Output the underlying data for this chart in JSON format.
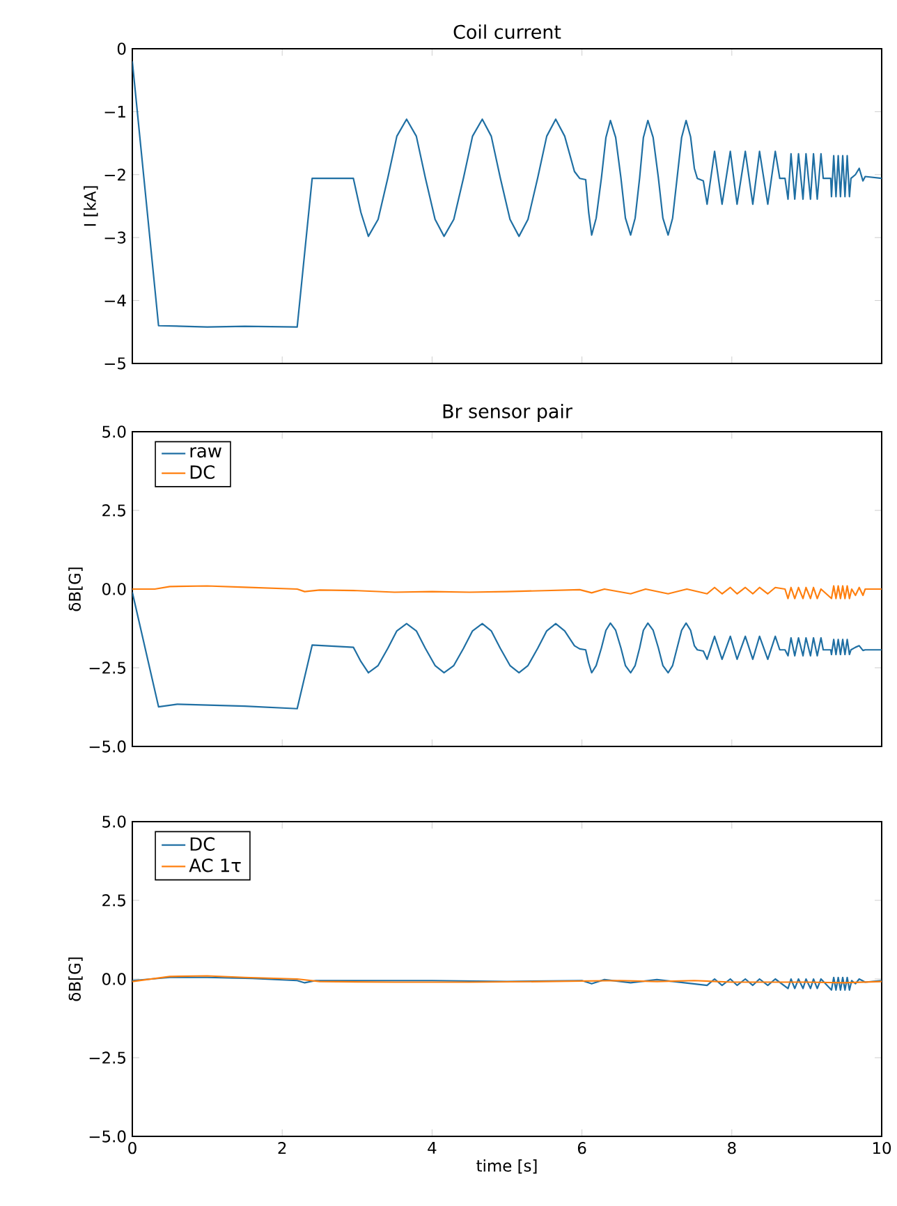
{
  "chart_data": [
    {
      "type": "line",
      "title": "Coil current",
      "ylabel": "I [kA]",
      "xlim": [
        0,
        10
      ],
      "ylim": [
        -5,
        0
      ],
      "xticks": [
        0,
        2,
        4,
        6,
        8,
        10
      ],
      "yticks": [
        0,
        {
          "value": -1,
          "label": "−1"
        },
        {
          "value": -2,
          "label": "−2"
        },
        {
          "value": -3,
          "label": "−3"
        },
        {
          "value": -4,
          "label": "−4"
        },
        {
          "value": -5,
          "label": "−5"
        }
      ],
      "tick_labels": "y",
      "series": [
        {
          "color": "#1f6fa3",
          "x": [
            0,
            0.35,
            1.0,
            1.5,
            2.2,
            2.4,
            2.95,
            3.05,
            3.15,
            3.28,
            3.41,
            3.53,
            3.66,
            3.79,
            3.91,
            4.04,
            4.16,
            4.29,
            4.42,
            4.54,
            4.67,
            4.79,
            4.91,
            5.04,
            5.16,
            5.28,
            5.41,
            5.53,
            5.65,
            5.77,
            5.9,
            5.97,
            6.05,
            6.09,
            6.13,
            6.19,
            6.26,
            6.32,
            6.38,
            6.45,
            6.52,
            6.58,
            6.65,
            6.71,
            6.77,
            6.82,
            6.88,
            6.95,
            7.02,
            7.08,
            7.15,
            7.21,
            7.27,
            7.33,
            7.39,
            7.45,
            7.5,
            7.54,
            7.62,
            7.67,
            7.77,
            7.87,
            7.98,
            8.07,
            8.18,
            8.28,
            8.37,
            8.48,
            8.58,
            8.64,
            8.71,
            8.75,
            8.79,
            8.84,
            8.89,
            8.95,
            8.99,
            9.05,
            9.09,
            9.14,
            9.19,
            9.22,
            9.32,
            9.33,
            9.36,
            9.39,
            9.42,
            9.45,
            9.48,
            9.51,
            9.54,
            9.57,
            9.59,
            9.65,
            9.7,
            9.75,
            9.78,
            10
          ],
          "values": [
            -0.2,
            -4.4,
            -4.42,
            -4.41,
            -4.42,
            -2.06,
            -2.06,
            -2.6,
            -2.98,
            -2.71,
            -2.05,
            -1.39,
            -1.12,
            -1.39,
            -2.05,
            -2.71,
            -2.98,
            -2.71,
            -2.05,
            -1.39,
            -1.12,
            -1.39,
            -2.05,
            -2.71,
            -2.98,
            -2.71,
            -2.05,
            -1.39,
            -1.12,
            -1.39,
            -1.95,
            -2.06,
            -2.08,
            -2.6,
            -2.96,
            -2.69,
            -2.05,
            -1.41,
            -1.14,
            -1.41,
            -2.05,
            -2.69,
            -2.96,
            -2.69,
            -2.05,
            -1.41,
            -1.14,
            -1.41,
            -2.05,
            -2.69,
            -2.96,
            -2.69,
            -2.05,
            -1.41,
            -1.14,
            -1.4,
            -1.9,
            -2.06,
            -2.1,
            -2.47,
            -1.63,
            -2.47,
            -1.63,
            -2.47,
            -1.63,
            -2.47,
            -1.63,
            -2.47,
            -1.63,
            -2.06,
            -2.06,
            -2.39,
            -1.67,
            -2.39,
            -1.67,
            -2.39,
            -1.67,
            -2.39,
            -1.67,
            -2.39,
            -1.67,
            -2.06,
            -2.06,
            -2.35,
            -1.7,
            -2.35,
            -1.7,
            -2.35,
            -1.7,
            -2.35,
            -1.7,
            -2.35,
            -2.06,
            -2.0,
            -1.9,
            -2.1,
            -2.03,
            -2.06
          ]
        }
      ]
    },
    {
      "type": "line",
      "title": "Br sensor pair",
      "ylabel": "δB[G]",
      "xlim": [
        0,
        10
      ],
      "ylim": [
        -5,
        5
      ],
      "xticks": [
        0,
        2,
        4,
        6,
        8,
        10
      ],
      "yticks": [
        {
          "value": 5,
          "label": "5.0"
        },
        {
          "value": 2.5,
          "label": "2.5"
        },
        {
          "value": 0,
          "label": "0.0"
        },
        {
          "value": -2.5,
          "label": "−2.5"
        },
        {
          "value": -5,
          "label": "−5.0"
        }
      ],
      "tick_labels": "y",
      "legend": "top left",
      "series": [
        {
          "name": "raw",
          "color": "#1f6fa3",
          "x": [
            0,
            0.35,
            0.6,
            1.5,
            2.2,
            2.4,
            2.95,
            3.05,
            3.15,
            3.28,
            3.41,
            3.53,
            3.66,
            3.79,
            3.91,
            4.04,
            4.16,
            4.29,
            4.42,
            4.54,
            4.67,
            4.79,
            4.91,
            5.04,
            5.16,
            5.28,
            5.41,
            5.53,
            5.65,
            5.77,
            5.9,
            5.97,
            6.05,
            6.09,
            6.13,
            6.19,
            6.26,
            6.32,
            6.38,
            6.45,
            6.52,
            6.58,
            6.65,
            6.71,
            6.77,
            6.82,
            6.88,
            6.95,
            7.02,
            7.08,
            7.15,
            7.21,
            7.27,
            7.33,
            7.39,
            7.45,
            7.5,
            7.54,
            7.62,
            7.67,
            7.77,
            7.87,
            7.98,
            8.07,
            8.18,
            8.28,
            8.37,
            8.48,
            8.58,
            8.64,
            8.71,
            8.75,
            8.79,
            8.84,
            8.89,
            8.95,
            8.99,
            9.05,
            9.09,
            9.14,
            9.19,
            9.22,
            9.32,
            9.33,
            9.36,
            9.39,
            9.42,
            9.45,
            9.48,
            9.51,
            9.54,
            9.57,
            9.59,
            9.65,
            9.7,
            9.75,
            9.78,
            10
          ],
          "values": [
            -0.1,
            -3.74,
            -3.66,
            -3.72,
            -3.8,
            -1.78,
            -1.85,
            -2.3,
            -2.66,
            -2.43,
            -1.88,
            -1.33,
            -1.1,
            -1.33,
            -1.88,
            -2.43,
            -2.66,
            -2.43,
            -1.88,
            -1.33,
            -1.1,
            -1.33,
            -1.88,
            -2.43,
            -2.66,
            -2.43,
            -1.88,
            -1.33,
            -1.1,
            -1.33,
            -1.8,
            -1.9,
            -1.93,
            -2.35,
            -2.66,
            -2.43,
            -1.87,
            -1.31,
            -1.08,
            -1.31,
            -1.87,
            -2.43,
            -2.66,
            -2.43,
            -1.87,
            -1.31,
            -1.08,
            -1.31,
            -1.87,
            -2.43,
            -2.66,
            -2.43,
            -1.87,
            -1.31,
            -1.08,
            -1.31,
            -1.8,
            -1.93,
            -1.97,
            -2.23,
            -1.5,
            -2.23,
            -1.5,
            -2.23,
            -1.5,
            -2.23,
            -1.5,
            -2.23,
            -1.5,
            -1.93,
            -1.93,
            -2.12,
            -1.55,
            -2.12,
            -1.55,
            -2.12,
            -1.55,
            -2.12,
            -1.55,
            -2.12,
            -1.55,
            -1.93,
            -1.93,
            -2.08,
            -1.6,
            -2.08,
            -1.6,
            -2.08,
            -1.6,
            -2.08,
            -1.6,
            -2.08,
            -1.93,
            -1.85,
            -1.8,
            -1.95,
            -1.93,
            -1.93
          ]
        },
        {
          "name": "DC",
          "color": "#ff7f0e",
          "x": [
            0,
            0.3,
            0.5,
            1.0,
            1.5,
            2.2,
            2.3,
            2.5,
            3.0,
            3.5,
            4.0,
            4.5,
            5.0,
            5.5,
            5.97,
            6.13,
            6.3,
            6.65,
            6.85,
            7.15,
            7.4,
            7.67,
            7.77,
            7.87,
            7.98,
            8.07,
            8.18,
            8.28,
            8.37,
            8.48,
            8.58,
            8.71,
            8.75,
            8.79,
            8.84,
            8.89,
            8.95,
            8.99,
            9.05,
            9.09,
            9.14,
            9.19,
            9.33,
            9.36,
            9.39,
            9.42,
            9.45,
            9.48,
            9.51,
            9.54,
            9.57,
            9.6,
            9.65,
            9.7,
            9.75,
            9.78,
            10
          ],
          "values": [
            0,
            0,
            0.08,
            0.1,
            0.06,
            0,
            -0.08,
            -0.03,
            -0.05,
            -0.1,
            -0.08,
            -0.1,
            -0.08,
            -0.05,
            -0.02,
            -0.12,
            0,
            -0.15,
            0,
            -0.15,
            0,
            -0.15,
            0.05,
            -0.15,
            0.05,
            -0.15,
            0.05,
            -0.15,
            0.05,
            -0.15,
            0.05,
            0,
            -0.3,
            0.05,
            -0.3,
            0.05,
            -0.3,
            0.05,
            -0.3,
            0.05,
            -0.3,
            0,
            -0.3,
            0.1,
            -0.3,
            0.1,
            -0.3,
            0.1,
            -0.3,
            0.1,
            -0.3,
            0,
            -0.2,
            0.05,
            -0.2,
            0,
            0
          ]
        }
      ]
    },
    {
      "type": "line",
      "xlabel": "time [s]",
      "ylabel": "δB[G]",
      "xlim": [
        0,
        10
      ],
      "ylim": [
        -5,
        5
      ],
      "xticks": [
        0,
        2,
        4,
        6,
        8,
        10
      ],
      "yticks": [
        {
          "value": 5,
          "label": "5.0"
        },
        {
          "value": 2.5,
          "label": "2.5"
        },
        {
          "value": 0,
          "label": "0.0"
        },
        {
          "value": -2.5,
          "label": "−2.5"
        },
        {
          "value": -5,
          "label": "−5.0"
        }
      ],
      "legend": "top left",
      "series": [
        {
          "name": "DC",
          "color": "#1f6fa3",
          "x": [
            0,
            0.5,
            1.0,
            1.6,
            2.2,
            2.3,
            2.45,
            3.0,
            4.0,
            5.0,
            6.0,
            6.13,
            6.3,
            6.65,
            7.0,
            7.67,
            7.77,
            7.87,
            7.98,
            8.07,
            8.18,
            8.28,
            8.37,
            8.48,
            8.58,
            8.75,
            8.79,
            8.84,
            8.89,
            8.95,
            8.99,
            9.05,
            9.09,
            9.14,
            9.19,
            9.33,
            9.36,
            9.39,
            9.42,
            9.45,
            9.48,
            9.51,
            9.54,
            9.57,
            9.6,
            9.65,
            9.7,
            9.78,
            10
          ],
          "values": [
            -0.05,
            0.05,
            0.05,
            0.02,
            -0.05,
            -0.12,
            -0.05,
            -0.05,
            -0.05,
            -0.08,
            -0.05,
            -0.15,
            -0.02,
            -0.12,
            -0.02,
            -0.2,
            0,
            -0.2,
            0,
            -0.2,
            0,
            -0.2,
            0,
            -0.2,
            0,
            -0.3,
            0,
            -0.3,
            0,
            -0.3,
            0,
            -0.3,
            0,
            -0.3,
            0,
            -0.35,
            0.05,
            -0.35,
            0.05,
            -0.35,
            0.05,
            -0.35,
            0.05,
            -0.35,
            -0.05,
            -0.15,
            0,
            -0.1,
            -0.05
          ]
        },
        {
          "name": "AC 1τ",
          "color": "#ff7f0e",
          "x": [
            0,
            0.5,
            1.0,
            1.5,
            2.2,
            2.5,
            3.5,
            4.5,
            5.5,
            6.5,
            7.0,
            7.5,
            8.0,
            9.0,
            9.5,
            10
          ],
          "values": [
            -0.08,
            0.08,
            0.1,
            0.05,
            0,
            -0.08,
            -0.1,
            -0.1,
            -0.08,
            -0.05,
            -0.08,
            -0.05,
            -0.1,
            -0.1,
            -0.12,
            -0.08
          ]
        }
      ]
    }
  ]
}
